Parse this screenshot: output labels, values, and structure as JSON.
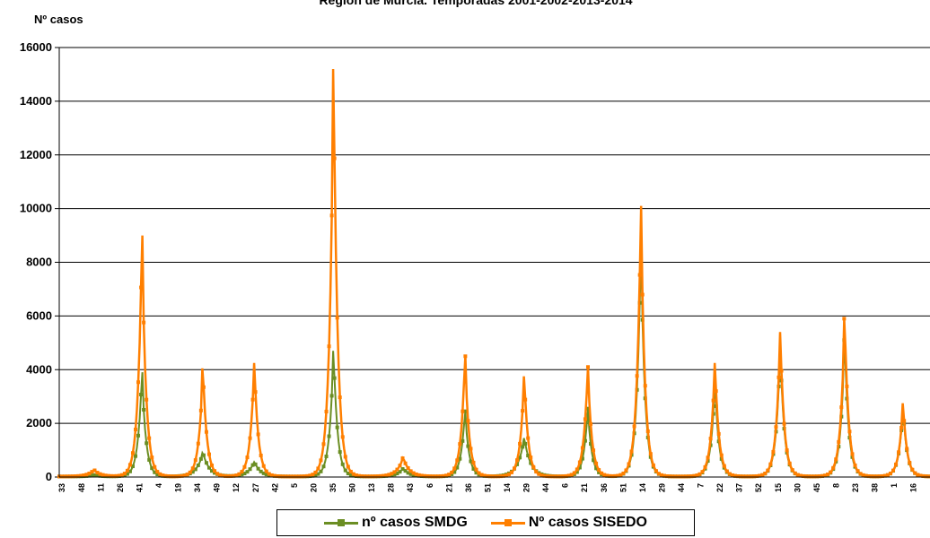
{
  "chart_data": {
    "type": "line",
    "title": "Región de Murcia. Temporadas 2001-2002-2013-2014",
    "subtitle": "",
    "xlabel": "",
    "ylabel": "Nº casos",
    "ylim": [
      0,
      16000
    ],
    "y_ticks": [
      "0",
      "2000",
      "4000",
      "6000",
      "8000",
      "10000",
      "12000",
      "14000",
      "16000"
    ],
    "grid": true,
    "legend_position": "bottom",
    "x_tick_labels": [
      "33",
      "48",
      "11",
      "26",
      "41",
      "4",
      "19",
      "34",
      "49",
      "12",
      "27",
      "42",
      "5",
      "20",
      "35",
      "50",
      "13",
      "28",
      "43",
      "6",
      "21",
      "36",
      "51",
      "14",
      "29",
      "44",
      "6",
      "21",
      "36",
      "51",
      "14",
      "29",
      "44",
      "7",
      "22",
      "37",
      "52",
      "15",
      "30",
      "45",
      "8",
      "23",
      "38",
      "1",
      "16"
    ],
    "series": [
      {
        "name": "nº casos SMDG",
        "color": "#6b8e23",
        "peaks": [
          {
            "x": 0.04,
            "y": 60
          },
          {
            "x": 0.095,
            "y": 3900
          },
          {
            "x": 0.165,
            "y": 900
          },
          {
            "x": 0.224,
            "y": 550
          },
          {
            "x": 0.315,
            "y": 4700
          },
          {
            "x": 0.395,
            "y": 300
          },
          {
            "x": 0.466,
            "y": 2450
          },
          {
            "x": 0.534,
            "y": 1450
          },
          {
            "x": 0.607,
            "y": 2550
          },
          {
            "x": 0.668,
            "y": 8700
          },
          {
            "x": 0.753,
            "y": 3500
          },
          {
            "x": 0.828,
            "y": 4900
          },
          {
            "x": 0.902,
            "y": 5100
          },
          {
            "x": 0.969,
            "y": 2600
          }
        ]
      },
      {
        "name": "Nº casos SISEDO",
        "color": "#ff7f00",
        "peaks": [
          {
            "x": 0.04,
            "y": 250
          },
          {
            "x": 0.095,
            "y": 9000
          },
          {
            "x": 0.165,
            "y": 4050
          },
          {
            "x": 0.224,
            "y": 4250
          },
          {
            "x": 0.315,
            "y": 15200
          },
          {
            "x": 0.395,
            "y": 700
          },
          {
            "x": 0.466,
            "y": 4500
          },
          {
            "x": 0.534,
            "y": 3750
          },
          {
            "x": 0.607,
            "y": 4100
          },
          {
            "x": 0.668,
            "y": 10100
          },
          {
            "x": 0.753,
            "y": 4250
          },
          {
            "x": 0.828,
            "y": 5400
          },
          {
            "x": 0.902,
            "y": 5900
          },
          {
            "x": 0.969,
            "y": 2750
          }
        ]
      }
    ]
  }
}
